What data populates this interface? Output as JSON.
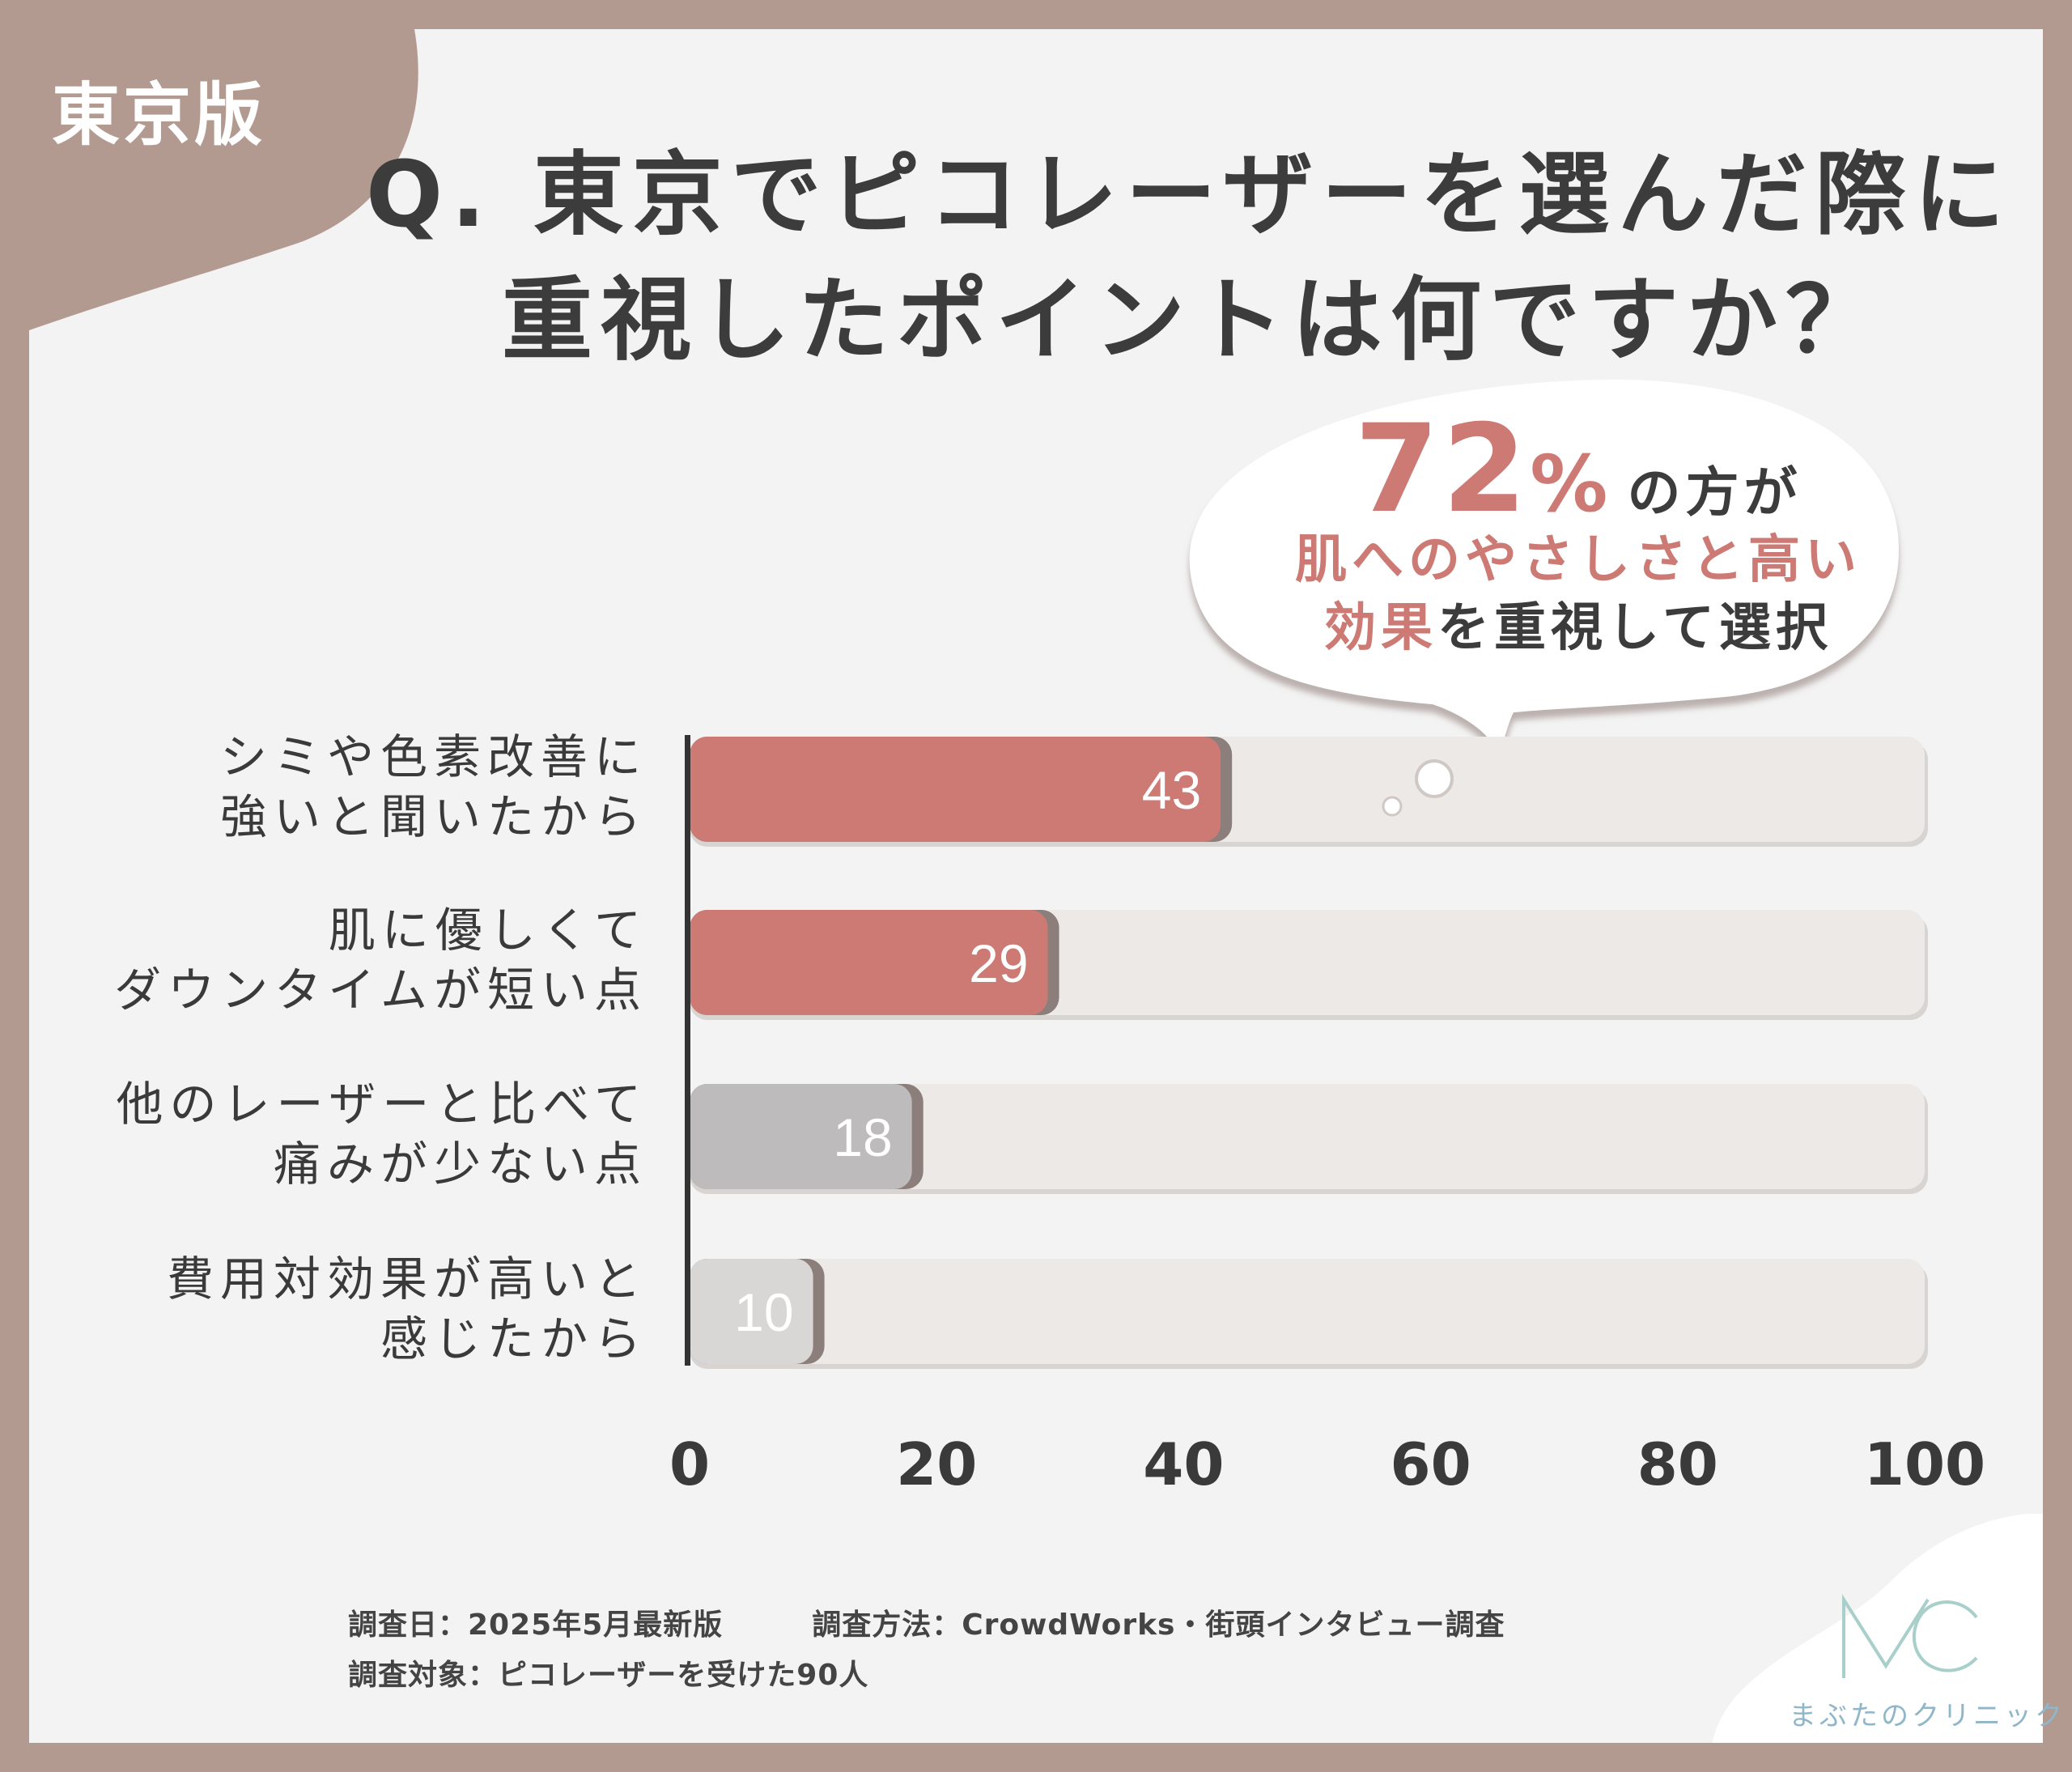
{
  "region_tag": "東京版",
  "title": {
    "line1": "Q. 東京でピコレーザーを選んだ際に",
    "line2": "重視したポイントは何ですか？"
  },
  "callout": {
    "big_number": "72",
    "percent_sign": "%",
    "suffix": "の方が",
    "line2_accent": "肌へのやさしさと高い",
    "line3_accent": "効果",
    "line3_rest": "を重視して選択"
  },
  "chart_data": {
    "type": "bar",
    "orientation": "horizontal",
    "categories": [
      [
        "シミや色素改善に",
        "強いと聞いたから"
      ],
      [
        "肌に優しくて",
        "ダウンタイムが短い点"
      ],
      [
        "他のレーザーと比べて",
        "痛みが少ない点"
      ],
      [
        "費用対効果が高いと",
        "感じたから"
      ]
    ],
    "values": [
      43,
      29,
      18,
      10
    ],
    "value_labels": [
      "43",
      "29",
      "18",
      "10"
    ],
    "xlim": [
      0,
      100
    ],
    "x_ticks": [
      "0",
      "20",
      "40",
      "60",
      "80",
      "100"
    ],
    "bar_colors": [
      "#cd7a74",
      "#cd7a74",
      "#bdbbbb",
      "#d9d6d6"
    ],
    "track_color": "#ede9e7",
    "grid": false
  },
  "footer": {
    "line1_left": "調査日：2025年5月最新版",
    "line1_right": "調査方法：CrowdWorks・街頭インタビュー調査",
    "line2": "調査対象：ピコレーザーを受けた90人"
  },
  "logo": {
    "text": "まぶたのクリニック",
    "color": "#8fb6c9"
  }
}
